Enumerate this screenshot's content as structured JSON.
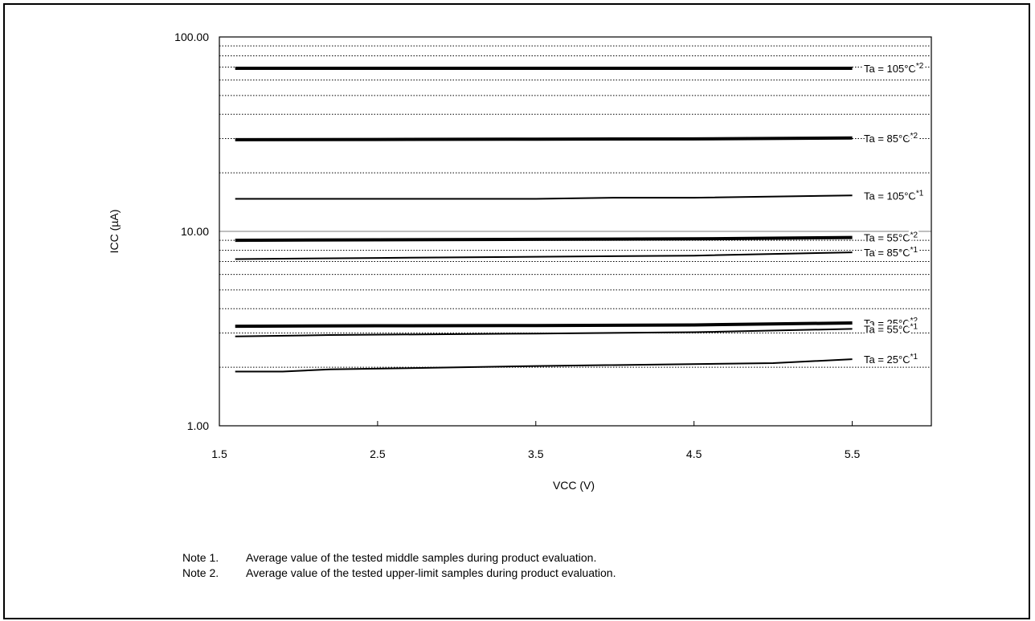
{
  "chart_data": {
    "type": "line",
    "xlabel": "VCC (V)",
    "ylabel": "ICC (µA)",
    "x_ticks": [
      "1.5",
      "2.5",
      "3.5",
      "4.5",
      "5.5"
    ],
    "y_ticks": [
      "1.00",
      "10.00",
      "100.00"
    ],
    "xlim": [
      1.5,
      6.0
    ],
    "ylim": [
      1,
      100
    ],
    "y_scale": "log",
    "grid": "dotted horizontal",
    "series": [
      {
        "name": "Ta = 105°C",
        "note": "*2",
        "weight": "bold",
        "x": [
          1.6,
          2.5,
          3.5,
          4.5,
          5.5
        ],
        "y": [
          69,
          69,
          69,
          69,
          69
        ]
      },
      {
        "name": "Ta = 85°C",
        "note": "*2",
        "weight": "bold",
        "x": [
          1.6,
          2.5,
          3.5,
          4.5,
          5.5
        ],
        "y": [
          29.6,
          29.7,
          29.8,
          29.9,
          30.2
        ]
      },
      {
        "name": "Ta = 105°C",
        "note": "*1",
        "weight": "normal",
        "x": [
          1.6,
          2.5,
          3.5,
          4.0,
          4.5,
          5.5
        ],
        "y": [
          14.7,
          14.7,
          14.7,
          14.9,
          14.9,
          15.3
        ]
      },
      {
        "name": "Ta = 55°C",
        "note": "*2",
        "weight": "bold",
        "x": [
          1.6,
          2.5,
          3.5,
          4.5,
          5.5
        ],
        "y": [
          9.0,
          9.05,
          9.1,
          9.15,
          9.3
        ]
      },
      {
        "name": "Ta = 85°C",
        "note": "*1",
        "weight": "normal",
        "x": [
          1.6,
          2.5,
          3.5,
          4.5,
          5.5
        ],
        "y": [
          7.2,
          7.3,
          7.4,
          7.5,
          7.8
        ]
      },
      {
        "name": "Ta = 25°C",
        "note": "*2",
        "weight": "bold",
        "x": [
          1.6,
          2.5,
          3.5,
          4.5,
          5.5
        ],
        "y": [
          3.25,
          3.27,
          3.28,
          3.3,
          3.38
        ]
      },
      {
        "name": "Ta = 55°C",
        "note": "*1",
        "weight": "normal",
        "x": [
          1.6,
          2.2,
          3.5,
          4.5,
          5.5
        ],
        "y": [
          2.88,
          2.93,
          2.98,
          3.03,
          3.15
        ]
      },
      {
        "name": "Ta = 25°C",
        "note": "*1",
        "weight": "normal",
        "x": [
          1.6,
          1.9,
          2.2,
          3.5,
          5.0,
          5.5
        ],
        "y": [
          1.9,
          1.9,
          1.95,
          2.03,
          2.1,
          2.2
        ]
      }
    ]
  },
  "notes": [
    {
      "label": "Note 1.",
      "text": "Average value of the tested middle samples during product evaluation."
    },
    {
      "label": "Note 2.",
      "text": "Average value of the tested upper-limit samples during product evaluation."
    }
  ]
}
